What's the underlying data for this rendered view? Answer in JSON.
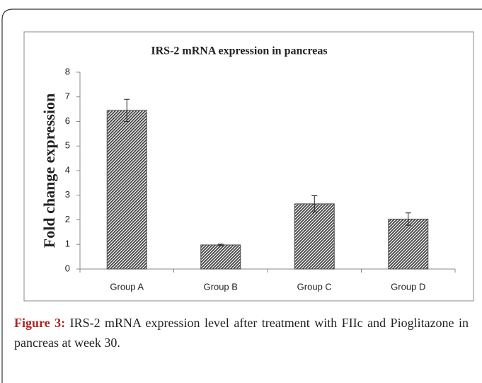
{
  "chart_data": {
    "type": "bar",
    "title": "IRS-2 mRNA expression  in pancreas",
    "y_label": "Fold change expression",
    "categories": [
      "Group A",
      "Group B",
      "Group C",
      "Group D"
    ],
    "values": [
      6.45,
      0.98,
      2.65,
      2.03
    ],
    "errors": [
      0.45,
      0.03,
      0.33,
      0.25
    ],
    "color": "#4d4d4d",
    "ylim": [
      0,
      8
    ],
    "yticks": [
      0,
      1,
      2,
      3,
      4,
      5,
      6,
      7,
      8
    ],
    "grid": false
  },
  "caption": {
    "label": "Figure 3:",
    "text": "IRS-2 mRNA expression level after treatment with FIIc and Pioglitazone in pancreas at week 30."
  }
}
